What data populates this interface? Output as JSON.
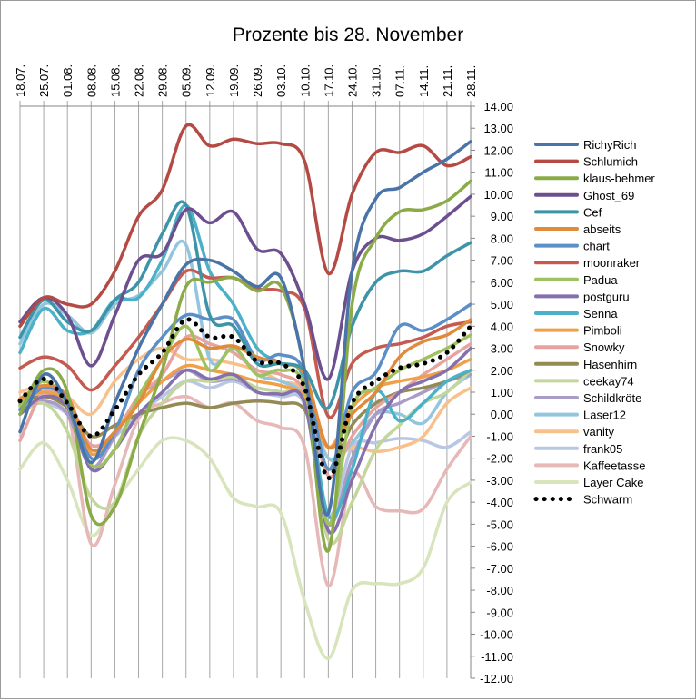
{
  "chart_data": {
    "type": "line",
    "title": "Prozente bis 28. November",
    "xlabel": "",
    "ylabel": "",
    "categories": [
      "18.07.",
      "25.07.",
      "01.08.",
      "08.08.",
      "15.08.",
      "22.08.",
      "29.08.",
      "05.09.",
      "12.09.",
      "19.09.",
      "26.09.",
      "03.10.",
      "10.10.",
      "17.10.",
      "24.10.",
      "31.10.",
      "07.11.",
      "14.11.",
      "21.11.",
      "28.11."
    ],
    "x_axis_position": "top",
    "y_axis_position": "right",
    "ylim": [
      -12,
      14
    ],
    "ytick_step": 1,
    "ytick_format": "2dp",
    "grid": "vertical",
    "legend_position": "right",
    "series": [
      {
        "name": "RichyRich",
        "color": "#4a73a8",
        "dash": false,
        "values": [
          -0.8,
          1.8,
          0.5,
          -2.2,
          0.5,
          3.0,
          5.0,
          6.8,
          7.0,
          6.5,
          5.8,
          6.2,
          2.0,
          -4.5,
          6.5,
          9.8,
          10.3,
          11.0,
          11.6,
          12.4
        ]
      },
      {
        "name": "Schlumich",
        "color": "#b54a45",
        "dash": false,
        "values": [
          4.0,
          5.3,
          5.0,
          5.0,
          6.5,
          9.0,
          10.2,
          13.1,
          12.2,
          12.5,
          12.3,
          12.3,
          11.5,
          6.4,
          10.0,
          11.9,
          11.9,
          12.2,
          11.3,
          11.7
        ]
      },
      {
        "name": "klaus-behmer",
        "color": "#8aab47",
        "dash": false,
        "values": [
          0.0,
          2.0,
          1.0,
          -4.6,
          -4.2,
          -1.0,
          2.0,
          5.8,
          6.0,
          6.2,
          5.6,
          5.8,
          2.0,
          -6.2,
          5.0,
          8.0,
          9.2,
          9.3,
          9.7,
          10.6
        ]
      },
      {
        "name": "Ghost_69",
        "color": "#6c4f8f",
        "dash": false,
        "values": [
          4.2,
          5.3,
          4.5,
          2.2,
          4.5,
          7.0,
          7.3,
          9.3,
          8.7,
          9.2,
          7.5,
          7.3,
          5.0,
          1.6,
          6.5,
          8.0,
          7.9,
          8.2,
          9.0,
          9.9
        ]
      },
      {
        "name": "Cef",
        "color": "#3d94a8",
        "dash": false,
        "values": [
          3.5,
          5.2,
          4.2,
          3.8,
          5.2,
          6.0,
          8.2,
          9.5,
          4.5,
          4.0,
          2.3,
          2.3,
          2.0,
          0.3,
          4.0,
          6.0,
          6.5,
          6.5,
          7.2,
          7.8
        ]
      },
      {
        "name": "abseits",
        "color": "#e08a3c",
        "dash": false,
        "values": [
          0.7,
          1.3,
          0.8,
          -1.6,
          -0.8,
          0.5,
          2.5,
          3.4,
          3.0,
          3.1,
          2.6,
          2.3,
          1.8,
          -1.5,
          0.0,
          1.0,
          2.6,
          3.3,
          3.6,
          4.3
        ]
      },
      {
        "name": "chart",
        "color": "#5b8fc7",
        "dash": false,
        "values": [
          0.2,
          1.2,
          0.6,
          -2.0,
          -0.8,
          2.0,
          3.5,
          4.5,
          4.3,
          4.3,
          2.5,
          2.7,
          1.9,
          -2.5,
          1.0,
          1.9,
          4.0,
          3.8,
          4.3,
          5.0
        ]
      },
      {
        "name": "moonraker",
        "color": "#c55a51",
        "dash": false,
        "values": [
          2.1,
          2.6,
          2.2,
          1.1,
          2.2,
          3.5,
          5.0,
          6.5,
          6.2,
          6.2,
          5.7,
          5.6,
          4.8,
          -0.1,
          2.3,
          3.0,
          3.2,
          3.5,
          4.0,
          4.2
        ]
      },
      {
        "name": "Padua",
        "color": "#a0c15f",
        "dash": false,
        "values": [
          0.4,
          1.5,
          0.4,
          -2.3,
          -1.6,
          0.8,
          2.5,
          4.0,
          2.0,
          3.0,
          1.8,
          2.0,
          1.2,
          -5.0,
          0.3,
          1.2,
          2.0,
          2.5,
          3.0,
          3.6
        ]
      },
      {
        "name": "postguru",
        "color": "#8470ad",
        "dash": false,
        "values": [
          0.0,
          0.8,
          0.3,
          -2.5,
          -1.6,
          0.0,
          1.0,
          2.0,
          1.6,
          1.8,
          1.0,
          0.9,
          0.5,
          -5.3,
          -3.0,
          -0.5,
          1.0,
          1.5,
          2.0,
          3.0
        ]
      },
      {
        "name": "Senna",
        "color": "#4bb1c8",
        "dash": false,
        "values": [
          2.8,
          4.8,
          3.8,
          3.8,
          5.2,
          5.3,
          7.0,
          9.5,
          6.5,
          5.0,
          3.0,
          2.3,
          1.5,
          -4.6,
          -2.5,
          1.0,
          -0.3,
          0.5,
          1.5,
          2.0
        ]
      },
      {
        "name": "Pimboli",
        "color": "#f0a04a",
        "dash": false,
        "values": [
          0.7,
          1.0,
          0.5,
          -1.8,
          -0.8,
          0.5,
          1.5,
          2.2,
          2.0,
          1.8,
          1.5,
          1.3,
          0.8,
          -1.5,
          0.3,
          1.2,
          1.5,
          1.7,
          2.0,
          2.5
        ]
      },
      {
        "name": "Snowky",
        "color": "#e6a3a0",
        "dash": false,
        "values": [
          -1.2,
          1.0,
          0.5,
          -1.4,
          -0.8,
          0.8,
          1.8,
          3.5,
          3.2,
          2.8,
          2.0,
          1.8,
          1.0,
          -2.8,
          -1.0,
          0.3,
          1.0,
          1.8,
          2.5,
          3.2
        ]
      },
      {
        "name": "Hasenhirn",
        "color": "#948a54",
        "dash": false,
        "values": [
          0.5,
          0.8,
          0.3,
          -1.0,
          -0.5,
          0.0,
          0.3,
          0.5,
          0.3,
          0.5,
          0.6,
          0.5,
          0.2,
          -2.5,
          -0.5,
          0.5,
          1.0,
          1.2,
          1.5,
          2.0
        ]
      },
      {
        "name": "ceekay74",
        "color": "#c3d69b",
        "dash": false,
        "values": [
          0.0,
          0.5,
          -0.8,
          -3.8,
          -4.0,
          -1.0,
          0.5,
          1.5,
          1.5,
          1.7,
          1.2,
          1.0,
          0.5,
          -5.7,
          -4.0,
          -1.6,
          -0.5,
          0.5,
          1.0,
          2.0
        ]
      },
      {
        "name": "Schildkröte",
        "color": "#a99cc7",
        "dash": false,
        "values": [
          0.2,
          0.6,
          0.0,
          -2.4,
          -1.0,
          0.8,
          1.5,
          2.0,
          1.5,
          1.6,
          1.2,
          1.0,
          0.5,
          -5.0,
          -2.0,
          0.0,
          0.5,
          1.0,
          1.5,
          1.8
        ]
      },
      {
        "name": "Laser12",
        "color": "#93c6dd",
        "dash": false,
        "values": [
          3.2,
          5.0,
          4.5,
          3.7,
          5.0,
          5.4,
          6.5,
          7.7,
          2.5,
          3.0,
          1.8,
          1.5,
          0.8,
          -2.0,
          -1.3,
          0.0,
          0.0,
          -0.4,
          1.0,
          1.8
        ]
      },
      {
        "name": "vanity",
        "color": "#f8c08a",
        "dash": false,
        "values": [
          1.0,
          1.3,
          0.8,
          0.0,
          1.5,
          2.5,
          3.0,
          2.5,
          2.5,
          2.3,
          2.0,
          1.5,
          1.0,
          -2.0,
          -1.5,
          -1.7,
          -1.5,
          -1.0,
          0.5,
          1.2
        ]
      },
      {
        "name": "frank05",
        "color": "#b9c7e4",
        "dash": false,
        "values": [
          0.3,
          0.5,
          0.0,
          -1.4,
          -1.0,
          0.0,
          0.8,
          1.5,
          1.2,
          1.5,
          1.0,
          0.8,
          0.4,
          -4.6,
          -1.5,
          -1.3,
          -1.1,
          -1.2,
          -1.5,
          -0.8
        ]
      },
      {
        "name": "Kaffeetasse",
        "color": "#e6b8b7",
        "dash": false,
        "values": [
          0.6,
          0.9,
          0.2,
          -5.9,
          -3.2,
          -0.2,
          0.5,
          0.8,
          0.3,
          0.5,
          -0.3,
          -0.6,
          -1.5,
          -7.8,
          -2.8,
          -4.2,
          -4.4,
          -4.3,
          -2.5,
          -1.0
        ]
      },
      {
        "name": "Layer Cake",
        "color": "#d7e4bc",
        "dash": false,
        "values": [
          -2.5,
          -1.3,
          -3.0,
          -5.5,
          -4.0,
          -2.5,
          -1.2,
          -1.2,
          -2.0,
          -3.8,
          -4.2,
          -4.5,
          -8.5,
          -11.1,
          -8.0,
          -7.7,
          -7.7,
          -7.0,
          -4.0,
          -3.1
        ]
      },
      {
        "name": "Schwarm",
        "color": "#000000",
        "dash": true,
        "values": [
          0.6,
          1.6,
          0.5,
          -1.0,
          0.2,
          1.8,
          2.8,
          4.3,
          3.5,
          3.5,
          2.4,
          2.3,
          1.2,
          -2.9,
          0.5,
          1.5,
          2.1,
          2.3,
          2.8,
          4.0
        ]
      }
    ]
  }
}
